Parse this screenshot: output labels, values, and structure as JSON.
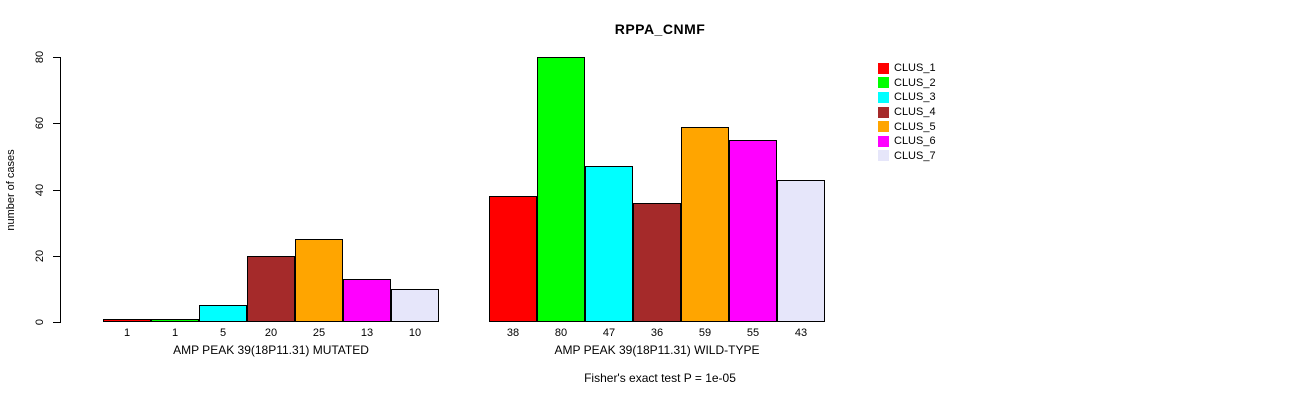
{
  "chart_data": {
    "type": "bar",
    "title": "RPPA_CNMF",
    "ylabel": "number of cases",
    "xlabel": "",
    "ylim": [
      0,
      80
    ],
    "yticks": [
      0,
      20,
      40,
      60,
      80
    ],
    "grid": false,
    "legend_position": "top-right",
    "series": [
      {
        "name": "CLUS_1",
        "color": "#FF0000"
      },
      {
        "name": "CLUS_2",
        "color": "#00FF00"
      },
      {
        "name": "CLUS_3",
        "color": "#00FFFF"
      },
      {
        "name": "CLUS_4",
        "color": "#A52A2A"
      },
      {
        "name": "CLUS_5",
        "color": "#FFA500"
      },
      {
        "name": "CLUS_6",
        "color": "#FF00FF"
      },
      {
        "name": "CLUS_7",
        "color": "#E6E6FA"
      }
    ],
    "groups": [
      {
        "label": "AMP PEAK 39(18P11.31) MUTATED",
        "values": [
          1,
          1,
          5,
          20,
          25,
          13,
          10
        ]
      },
      {
        "label": "AMP PEAK 39(18P11.31) WILD-TYPE",
        "values": [
          38,
          80,
          47,
          36,
          59,
          55,
          43
        ]
      }
    ],
    "footnote": "Fisher's exact test P = 1e-05",
    "colors": {
      "background": "#FFFFFF",
      "axis": "#000000",
      "bar_border": "#000000",
      "text": "#000000"
    }
  }
}
